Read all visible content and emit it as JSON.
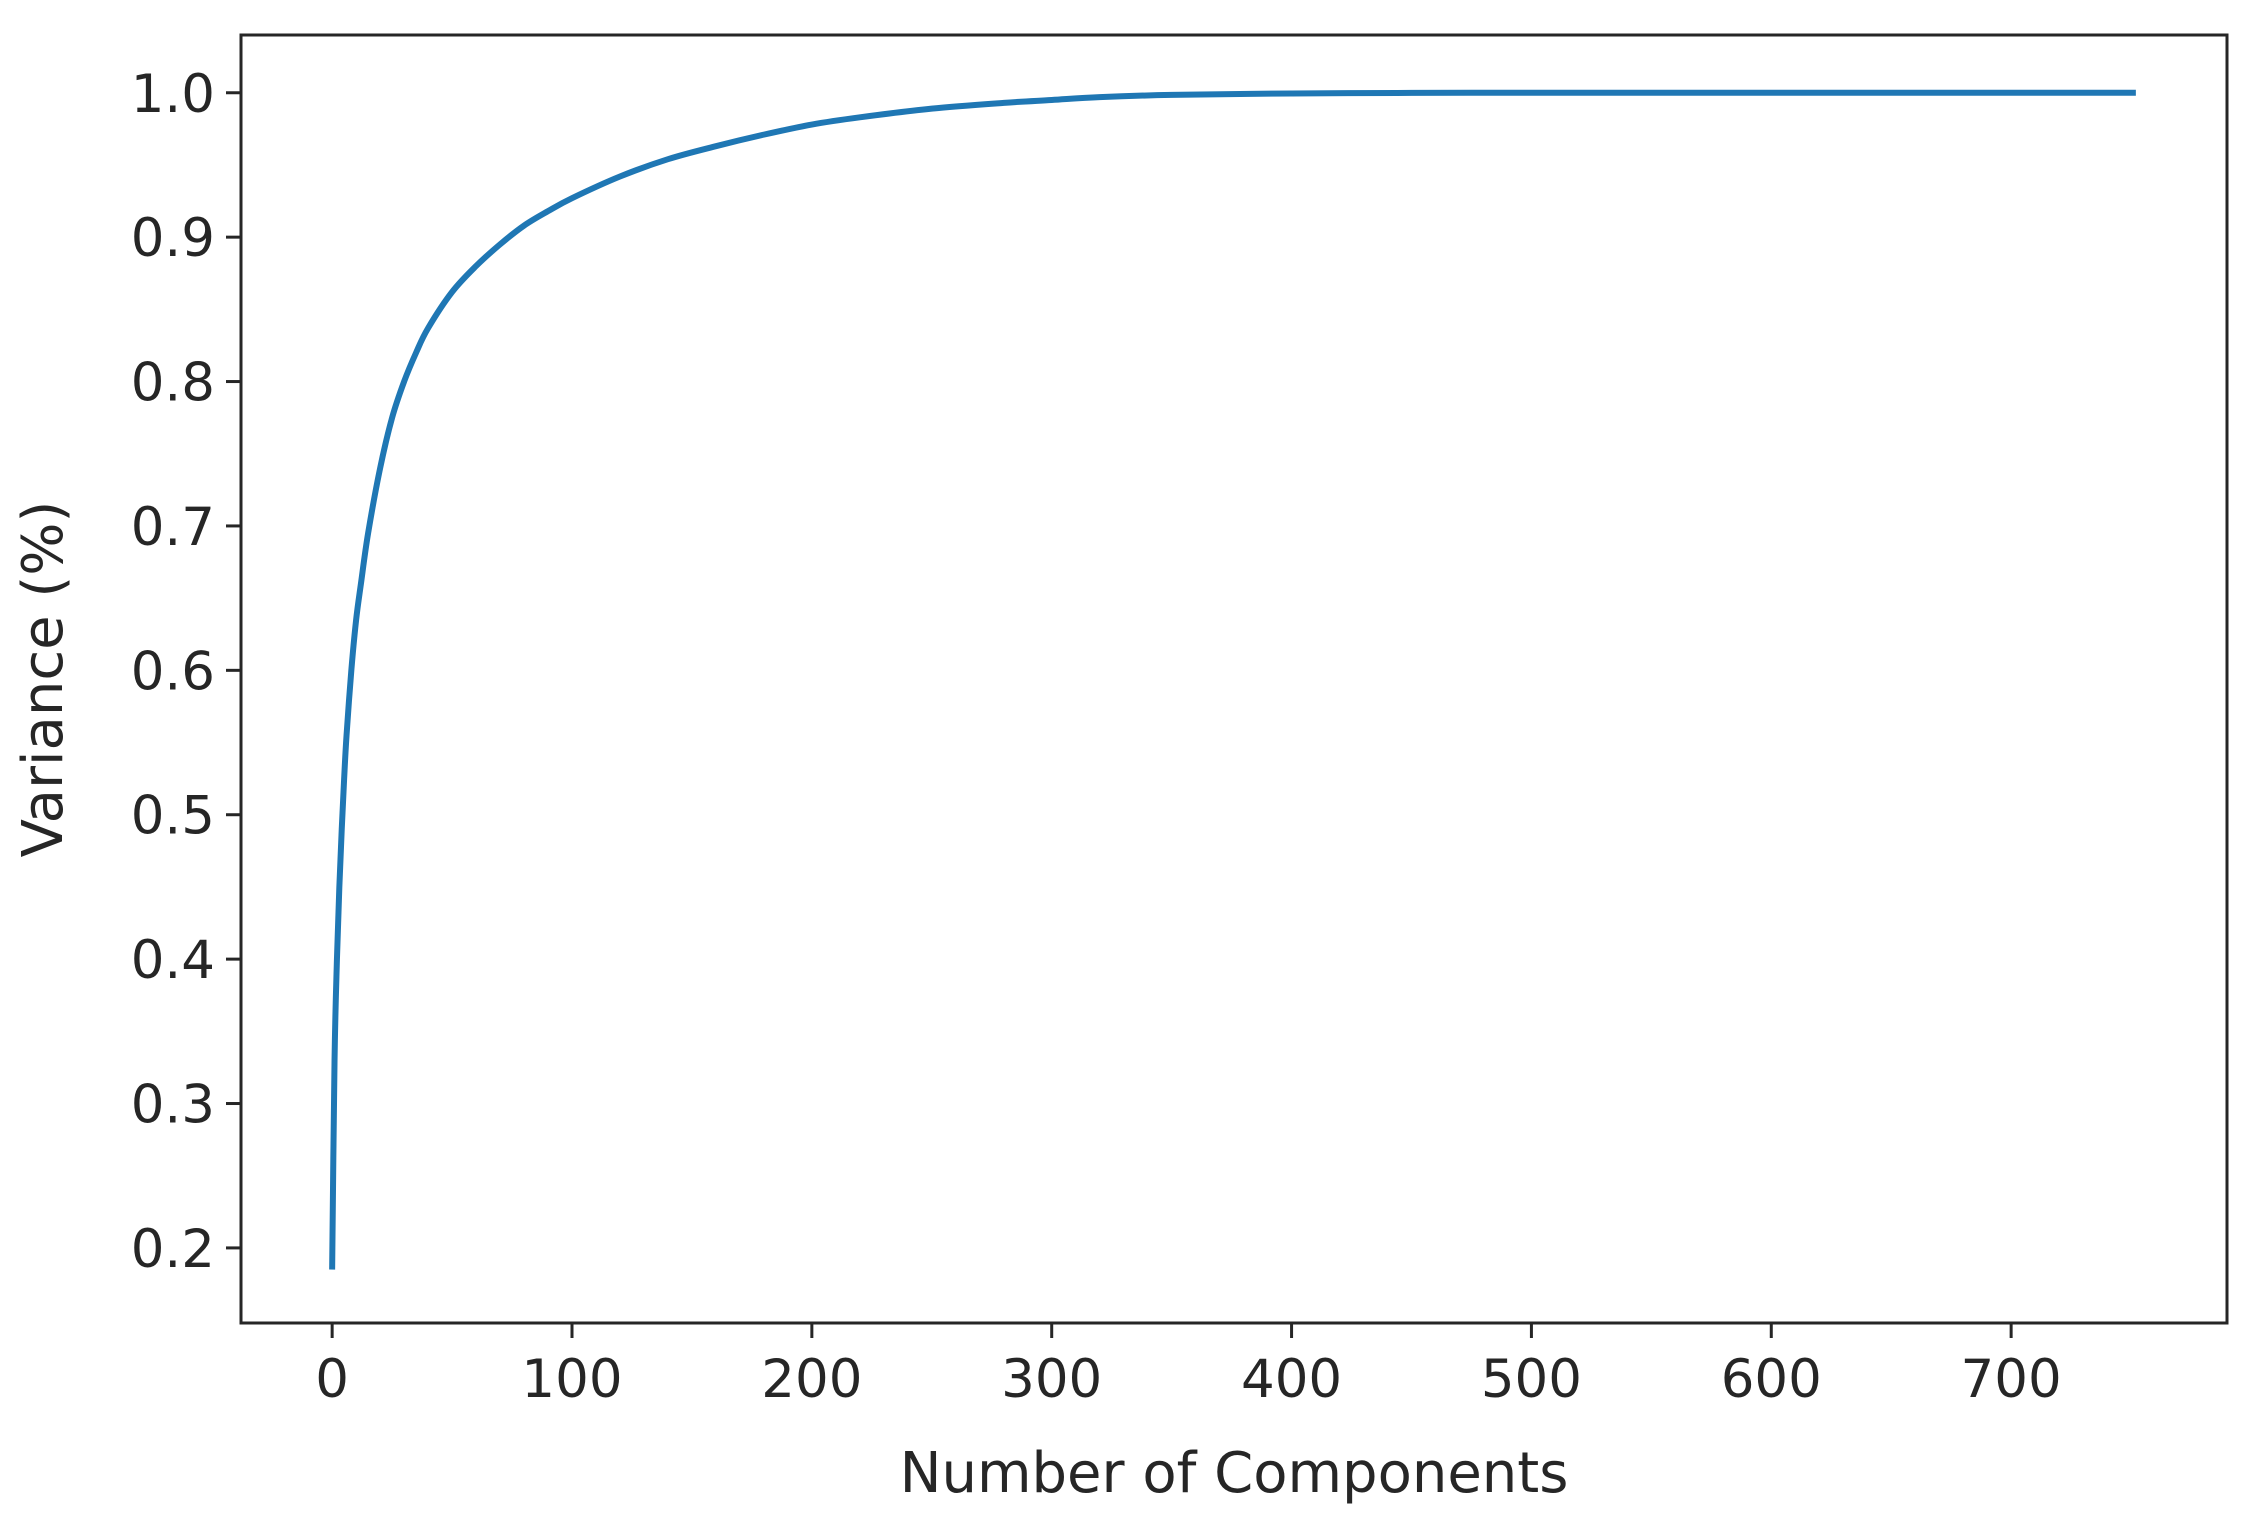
{
  "chart_data": {
    "type": "line",
    "title": "",
    "xlabel": "Number of Components",
    "ylabel": "Variance (%)",
    "xlim": [
      -38,
      790
    ],
    "ylim": [
      0.148,
      1.04
    ],
    "xticks": [
      0,
      100,
      200,
      300,
      400,
      500,
      600,
      700
    ],
    "yticks": [
      0.2,
      0.3,
      0.4,
      0.5,
      0.6,
      0.7,
      0.8,
      0.9,
      1.0
    ],
    "xtick_labels": [
      "0",
      "100",
      "200",
      "300",
      "400",
      "500",
      "600",
      "700"
    ],
    "ytick_labels": [
      "0.2",
      "0.3",
      "0.4",
      "0.5",
      "0.6",
      "0.7",
      "0.8",
      "0.9",
      "1.0"
    ],
    "grid": false,
    "line_color": "#1f77b4",
    "series": [
      {
        "x": [
          0,
          1,
          2,
          3,
          4,
          5,
          6,
          8,
          10,
          12,
          15,
          20,
          25,
          30,
          35,
          40,
          50,
          60,
          70,
          80,
          90,
          100,
          120,
          140,
          160,
          180,
          200,
          220,
          250,
          280,
          300,
          320,
          350,
          400,
          450,
          500,
          550,
          600,
          650,
          700,
          752
        ],
        "y": [
          0.185,
          0.33,
          0.4,
          0.45,
          0.49,
          0.525,
          0.555,
          0.6,
          0.635,
          0.66,
          0.695,
          0.74,
          0.775,
          0.8,
          0.82,
          0.837,
          0.862,
          0.88,
          0.895,
          0.908,
          0.918,
          0.927,
          0.942,
          0.954,
          0.963,
          0.971,
          0.978,
          0.983,
          0.989,
          0.993,
          0.995,
          0.997,
          0.9985,
          0.9995,
          0.9999,
          1.0,
          1.0,
          1.0,
          1.0,
          1.0,
          1.0
        ]
      }
    ]
  }
}
